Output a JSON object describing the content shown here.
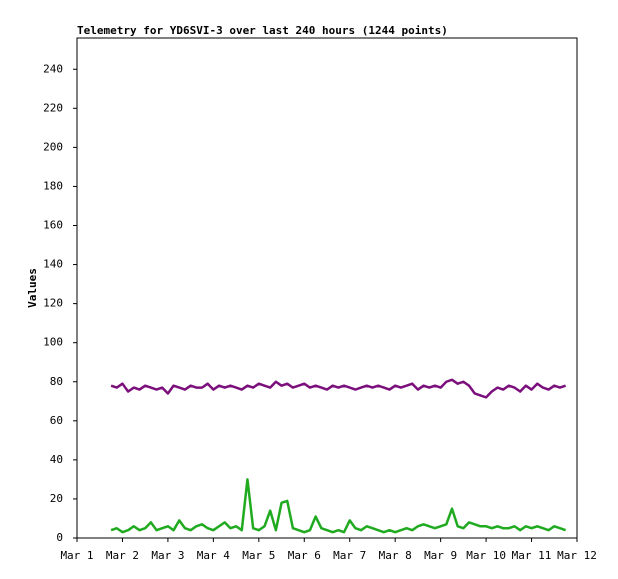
{
  "chart_data": {
    "type": "line",
    "title": "Telemetry for YD6SVI-3 over last 240 hours (1244 points)",
    "y_label": "Values",
    "xlim": [
      1,
      12
    ],
    "xticks": [
      {
        "value": 1,
        "label": "Mar 1"
      },
      {
        "value": 2,
        "label": "Mar 2"
      },
      {
        "value": 3,
        "label": "Mar 3"
      },
      {
        "value": 4,
        "label": "Mar 4"
      },
      {
        "value": 5,
        "label": "Mar 5"
      },
      {
        "value": 6,
        "label": "Mar 6"
      },
      {
        "value": 7,
        "label": "Mar 7"
      },
      {
        "value": 8,
        "label": "Mar 8"
      },
      {
        "value": 9,
        "label": "Mar 9"
      },
      {
        "value": 10,
        "label": "Mar 10"
      },
      {
        "value": 11,
        "label": "Mar 11"
      },
      {
        "value": 12,
        "label": "Mar 12"
      }
    ],
    "ylim": [
      0,
      256
    ],
    "yticks": [
      0,
      20,
      40,
      60,
      80,
      100,
      120,
      140,
      160,
      180,
      200,
      220,
      240
    ],
    "grid": false,
    "x": [
      1.75,
      1.875,
      2,
      2.125,
      2.25,
      2.375,
      2.5,
      2.625,
      2.75,
      2.875,
      3,
      3.125,
      3.25,
      3.375,
      3.5,
      3.625,
      3.75,
      3.875,
      4,
      4.125,
      4.25,
      4.375,
      4.5,
      4.625,
      4.75,
      4.875,
      5,
      5.125,
      5.25,
      5.375,
      5.5,
      5.625,
      5.75,
      5.875,
      6,
      6.125,
      6.25,
      6.375,
      6.5,
      6.625,
      6.75,
      6.875,
      7,
      7.125,
      7.25,
      7.375,
      7.5,
      7.625,
      7.75,
      7.875,
      8,
      8.125,
      8.25,
      8.375,
      8.5,
      8.625,
      8.75,
      8.875,
      9,
      9.125,
      9.25,
      9.375,
      9.5,
      9.625,
      9.75,
      9.875,
      10,
      10.125,
      10.25,
      10.375,
      10.5,
      10.625,
      10.75,
      10.875,
      11,
      11.125,
      11.25,
      11.375,
      11.5,
      11.625,
      11.75
    ],
    "series": [
      {
        "color": "#7b0f7b",
        "values": [
          78,
          77,
          79,
          75,
          77,
          76,
          78,
          77,
          76,
          77,
          74,
          78,
          77,
          76,
          78,
          77,
          77,
          79,
          76,
          78,
          77,
          78,
          77,
          76,
          78,
          77,
          79,
          78,
          77,
          80,
          78,
          79,
          77,
          78,
          79,
          77,
          78,
          77,
          76,
          78,
          77,
          78,
          77,
          76,
          77,
          78,
          77,
          78,
          77,
          76,
          78,
          77,
          78,
          79,
          76,
          78,
          77,
          78,
          77,
          80,
          81,
          79,
          80,
          78,
          74,
          73,
          72,
          75,
          77,
          76,
          78,
          77,
          75,
          78,
          76,
          79,
          77,
          76,
          78,
          77,
          78
        ]
      },
      {
        "color": "#1faa1f",
        "values": [
          4,
          5,
          3,
          4,
          6,
          4,
          5,
          8,
          4,
          5,
          6,
          4,
          9,
          5,
          4,
          6,
          7,
          5,
          4,
          6,
          8,
          5,
          6,
          4,
          30,
          5,
          4,
          6,
          14,
          4,
          18,
          19,
          5,
          4,
          3,
          4,
          11,
          5,
          4,
          3,
          4,
          3,
          9,
          5,
          4,
          6,
          5,
          4,
          3,
          4,
          3,
          4,
          5,
          4,
          6,
          7,
          6,
          5,
          6,
          7,
          15,
          6,
          5,
          8,
          7,
          6,
          6,
          5,
          6,
          5,
          5,
          6,
          4,
          6,
          5,
          6,
          5,
          4,
          6,
          5,
          4
        ]
      }
    ]
  }
}
